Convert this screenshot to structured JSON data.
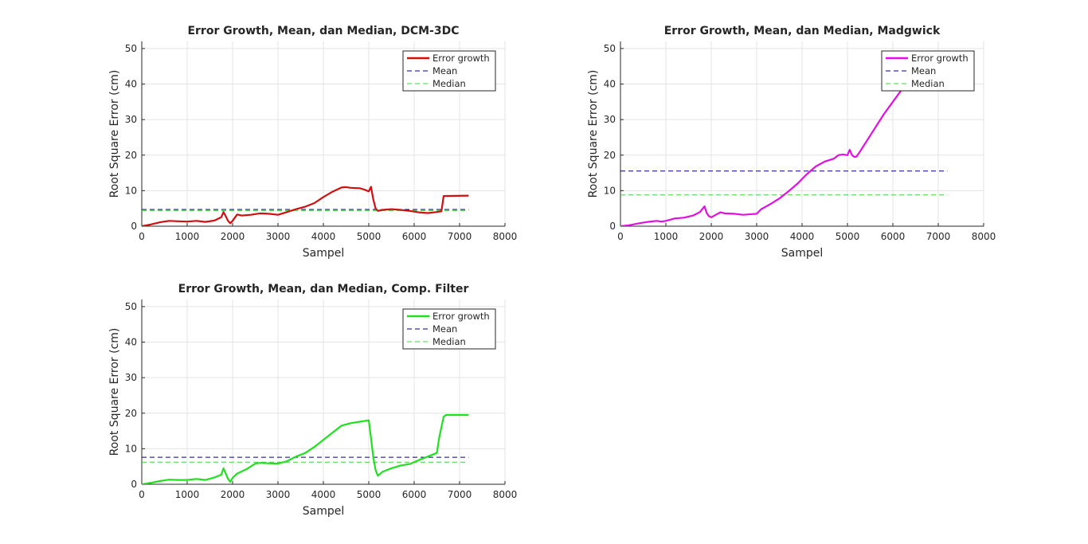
{
  "chart_data": [
    {
      "type": "line",
      "title": "Error Growth, Mean, dan Median, DCM-3DC",
      "xlabel": "Sampel",
      "ylabel": "Root Square Error (cm)",
      "xlim": [
        0,
        8000
      ],
      "ylim": [
        0,
        52
      ],
      "xticks": [
        0,
        1000,
        2000,
        3000,
        4000,
        5000,
        6000,
        7000,
        8000
      ],
      "yticks": [
        0,
        10,
        20,
        30,
        40,
        50
      ],
      "grid": true,
      "legend_position": "top-right",
      "series": [
        {
          "name": "Error growth",
          "style": "solid",
          "color": "#d01010",
          "x": [
            0,
            200,
            400,
            600,
            800,
            1000,
            1200,
            1400,
            1600,
            1750,
            1800,
            1850,
            1900,
            1950,
            2000,
            2100,
            2200,
            2400,
            2600,
            2800,
            3000,
            3200,
            3400,
            3600,
            3800,
            4000,
            4200,
            4400,
            4500,
            4600,
            4800,
            4900,
            5000,
            5050,
            5100,
            5150,
            5200,
            5300,
            5500,
            5700,
            5900,
            6100,
            6300,
            6500,
            6600,
            6650,
            7200
          ],
          "y": [
            0,
            0.5,
            1.1,
            1.5,
            1.4,
            1.3,
            1.5,
            1.2,
            1.6,
            2.5,
            4.0,
            2.8,
            1.5,
            0.8,
            1.5,
            3.3,
            3.0,
            3.2,
            3.6,
            3.5,
            3.2,
            4.0,
            4.8,
            5.5,
            6.5,
            8.2,
            9.7,
            10.9,
            11.0,
            10.8,
            10.7,
            10.3,
            9.8,
            11.1,
            7.5,
            5.0,
            4.3,
            4.6,
            4.8,
            4.6,
            4.3,
            3.9,
            3.7,
            4.0,
            4.2,
            8.5,
            8.6
          ]
        },
        {
          "name": "Mean",
          "style": "dashed",
          "color": "#000080",
          "x": [
            0,
            7200
          ],
          "y": [
            4.7,
            4.7
          ]
        },
        {
          "name": "Median",
          "style": "dashed",
          "color": "#40d040",
          "x": [
            0,
            7200
          ],
          "y": [
            4.4,
            4.4
          ]
        }
      ]
    },
    {
      "type": "line",
      "title": "Error Growth, Mean, dan Median, Madgwick",
      "xlabel": "Sampel",
      "ylabel": "Root Square Error (cm)",
      "xlim": [
        0,
        8000
      ],
      "ylim": [
        0,
        52
      ],
      "xticks": [
        0,
        1000,
        2000,
        3000,
        4000,
        5000,
        6000,
        7000,
        8000
      ],
      "yticks": [
        0,
        10,
        20,
        30,
        40,
        50
      ],
      "grid": true,
      "legend_position": "top-right",
      "series": [
        {
          "name": "Error growth",
          "style": "solid",
          "color": "#e010e0",
          "x": [
            0,
            200,
            400,
            600,
            800,
            900,
            1000,
            1200,
            1400,
            1600,
            1750,
            1850,
            1900,
            1950,
            2000,
            2100,
            2200,
            2300,
            2500,
            2700,
            2900,
            3000,
            3100,
            3300,
            3500,
            3700,
            3900,
            4100,
            4300,
            4500,
            4700,
            4800,
            4900,
            5000,
            5050,
            5100,
            5150,
            5200,
            5300,
            5400,
            5600,
            5800,
            6000,
            6200,
            6300
          ],
          "y": [
            0,
            0.3,
            0.8,
            1.2,
            1.5,
            1.3,
            1.5,
            2.2,
            2.4,
            3.0,
            4.0,
            5.6,
            3.7,
            2.8,
            2.5,
            3.2,
            3.9,
            3.6,
            3.5,
            3.2,
            3.4,
            3.5,
            4.8,
            6.2,
            7.8,
            9.8,
            12.0,
            14.6,
            16.8,
            18.2,
            19.0,
            20.0,
            20.2,
            20.0,
            21.5,
            20.0,
            19.5,
            19.6,
            21.5,
            23.5,
            27.5,
            31.5,
            35.0,
            38.5,
            40.5
          ]
        },
        {
          "name": "Mean",
          "style": "dashed",
          "color": "#000080",
          "x": [
            0,
            7200
          ],
          "y": [
            15.5,
            15.5
          ]
        },
        {
          "name": "Median",
          "style": "dashed",
          "color": "#40d040",
          "x": [
            0,
            7200
          ],
          "y": [
            8.8,
            8.8
          ]
        }
      ]
    },
    {
      "type": "line",
      "title": "Error Growth, Mean, dan Median, Comp. Filter",
      "xlabel": "Sampel",
      "ylabel": "Root Square Error (cm)",
      "xlim": [
        0,
        8000
      ],
      "ylim": [
        0,
        52
      ],
      "xticks": [
        0,
        1000,
        2000,
        3000,
        4000,
        5000,
        6000,
        7000,
        8000
      ],
      "yticks": [
        0,
        10,
        20,
        30,
        40,
        50
      ],
      "grid": true,
      "legend_position": "top-right",
      "series": [
        {
          "name": "Error growth",
          "style": "solid",
          "color": "#20e020",
          "x": [
            0,
            200,
            400,
            600,
            800,
            1000,
            1200,
            1400,
            1600,
            1750,
            1800,
            1850,
            1900,
            1950,
            2000,
            2100,
            2300,
            2500,
            2600,
            2800,
            3000,
            3200,
            3400,
            3600,
            3800,
            4000,
            4200,
            4400,
            4600,
            4800,
            5000,
            5050,
            5100,
            5150,
            5200,
            5300,
            5500,
            5700,
            5900,
            6100,
            6300,
            6500,
            6550,
            6650,
            6700,
            7200
          ],
          "y": [
            0,
            0.4,
            0.9,
            1.3,
            1.2,
            1.2,
            1.5,
            1.2,
            1.9,
            2.7,
            4.5,
            3.0,
            1.5,
            0.7,
            1.8,
            3.0,
            4.2,
            5.8,
            6.0,
            5.9,
            5.8,
            6.5,
            7.8,
            8.8,
            10.5,
            12.5,
            14.5,
            16.5,
            17.2,
            17.6,
            18.0,
            13.0,
            7.5,
            4.0,
            2.4,
            3.5,
            4.5,
            5.3,
            5.7,
            6.8,
            7.8,
            8.8,
            13.0,
            19.0,
            19.5,
            19.5
          ]
        },
        {
          "name": "Mean",
          "style": "dashed",
          "color": "#000080",
          "x": [
            0,
            7200
          ],
          "y": [
            7.6,
            7.6
          ]
        },
        {
          "name": "Median",
          "style": "dashed",
          "color": "#40d040",
          "x": [
            0,
            7200
          ],
          "y": [
            6.2,
            6.2
          ]
        }
      ]
    }
  ]
}
